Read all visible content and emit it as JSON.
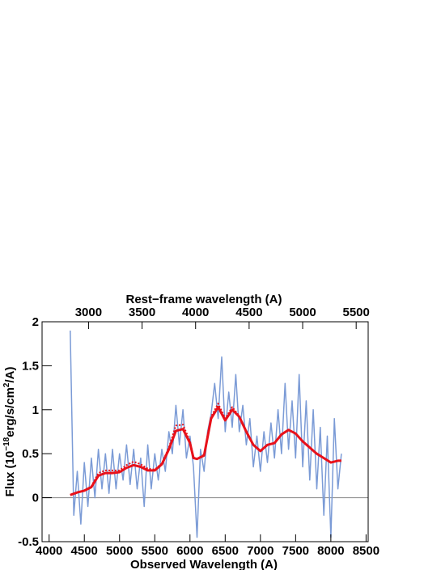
{
  "chart_data": {
    "type": "line",
    "title": "Rest−frame wavelength (A)",
    "xlabel": "Observed Wavelength (A)",
    "ylabel": [
      "Flux (10",
      "−18",
      "erg/s/cm",
      "2",
      "/A)"
    ],
    "xlim": [
      3900,
      8530
    ],
    "xticks": [
      4000,
      4500,
      5000,
      5500,
      6000,
      6500,
      7000,
      7500,
      8000,
      8500
    ],
    "x2lim": [
      2566,
      5612
    ],
    "x2ticks": [
      3000,
      3500,
      4000,
      4500,
      5000,
      5500
    ],
    "ylim": [
      -0.5,
      2
    ],
    "yticks": [
      -0.5,
      0,
      0.5,
      1,
      1.5,
      2
    ],
    "reference_line": 0,
    "series": [
      {
        "color": "#7b9bd6",
        "style": "solid",
        "width": 1.5,
        "x": [
          4300,
          4350,
          4400,
          4450,
          4500,
          4550,
          4600,
          4650,
          4700,
          4750,
          4800,
          4850,
          4900,
          4950,
          5000,
          5050,
          5100,
          5150,
          5200,
          5250,
          5300,
          5350,
          5400,
          5450,
          5500,
          5550,
          5600,
          5650,
          5700,
          5750,
          5800,
          5850,
          5900,
          5950,
          6000,
          6050,
          6100,
          6150,
          6200,
          6250,
          6300,
          6350,
          6400,
          6450,
          6500,
          6550,
          6600,
          6650,
          6700,
          6750,
          6800,
          6850,
          6900,
          6950,
          7000,
          7050,
          7100,
          7150,
          7200,
          7250,
          7300,
          7350,
          7400,
          7450,
          7500,
          7550,
          7600,
          7650,
          7700,
          7750,
          7800,
          7850,
          7900,
          7950,
          8000,
          8050,
          8100,
          8150
        ],
        "values": [
          1.9,
          -0.2,
          0.3,
          -0.3,
          0.4,
          -0.1,
          0.45,
          0.0,
          0.55,
          0.1,
          0.5,
          0.05,
          0.55,
          0.1,
          0.5,
          0.2,
          0.6,
          0.15,
          0.55,
          0.1,
          0.45,
          -0.1,
          0.6,
          0.1,
          0.5,
          0.2,
          0.55,
          0.3,
          0.75,
          0.5,
          1.05,
          0.6,
          1.0,
          0.45,
          0.7,
          0.35,
          -0.45,
          0.55,
          0.3,
          0.75,
          0.95,
          1.3,
          0.9,
          1.6,
          0.75,
          1.2,
          0.8,
          1.4,
          0.75,
          1.05,
          0.6,
          0.9,
          0.35,
          0.7,
          0.3,
          0.75,
          0.4,
          0.85,
          0.45,
          1.0,
          0.5,
          1.3,
          0.55,
          1.1,
          0.45,
          1.4,
          0.35,
          1.1,
          0.2,
          1.0,
          0.1,
          0.8,
          -0.2,
          0.7,
          -0.45,
          0.9,
          0.1,
          0.5
        ]
      },
      {
        "color": "#e8111a",
        "style": "dotted",
        "width": 2,
        "x": [
          4300,
          4400,
          4500,
          4600,
          4700,
          4800,
          4900,
          5000,
          5100,
          5200,
          5300,
          5400,
          5500,
          5600,
          5700,
          5800,
          5900,
          6000,
          6050,
          6100,
          6200,
          6300,
          6400,
          6500,
          6600,
          6700,
          6800,
          6900,
          7000,
          7100,
          7200,
          7300,
          7400,
          7500,
          7600,
          7700,
          7800,
          7900,
          8000,
          8100,
          8150
        ],
        "values": [
          0.03,
          0.06,
          0.08,
          0.13,
          0.28,
          0.31,
          0.31,
          0.31,
          0.37,
          0.41,
          0.38,
          0.33,
          0.32,
          0.39,
          0.57,
          0.82,
          0.83,
          0.64,
          0.46,
          0.44,
          0.49,
          0.92,
          1.07,
          0.9,
          1.03,
          0.93,
          0.76,
          0.6,
          0.53,
          0.6,
          0.62,
          0.72,
          0.77,
          0.73,
          0.64,
          0.57,
          0.5,
          0.45,
          0.4,
          0.42,
          0.42
        ]
      },
      {
        "color": "#e8111a",
        "style": "solid",
        "width": 3,
        "x": [
          4300,
          4400,
          4500,
          4600,
          4700,
          4800,
          4900,
          5000,
          5100,
          5200,
          5300,
          5400,
          5500,
          5600,
          5700,
          5800,
          5900,
          6000,
          6050,
          6100,
          6200,
          6300,
          6400,
          6500,
          6600,
          6700,
          6800,
          6900,
          7000,
          7100,
          7200,
          7300,
          7400,
          7500,
          7600,
          7700,
          7800,
          7900,
          8000,
          8100,
          8150
        ],
        "values": [
          0.03,
          0.06,
          0.08,
          0.12,
          0.25,
          0.28,
          0.28,
          0.29,
          0.34,
          0.37,
          0.35,
          0.31,
          0.31,
          0.38,
          0.55,
          0.76,
          0.78,
          0.62,
          0.45,
          0.44,
          0.48,
          0.9,
          1.03,
          0.88,
          1.0,
          0.92,
          0.75,
          0.6,
          0.53,
          0.6,
          0.62,
          0.72,
          0.77,
          0.73,
          0.64,
          0.57,
          0.5,
          0.45,
          0.4,
          0.42,
          0.42
        ]
      }
    ]
  }
}
